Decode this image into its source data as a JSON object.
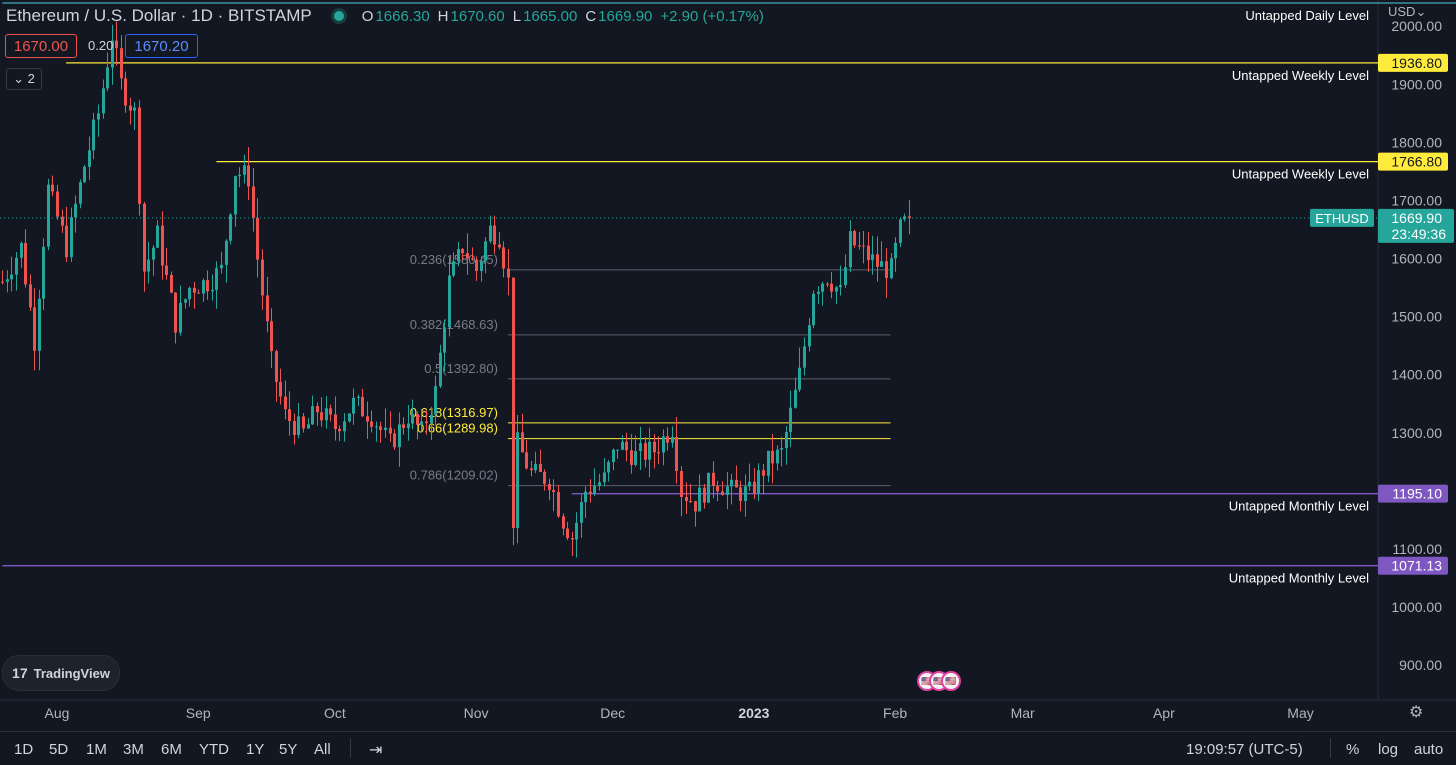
{
  "header": {
    "symbol": "Ethereum / U.S. Dollar · 1D · BITSTAMP",
    "ohlc": {
      "o_label": "O",
      "o": "1666.30",
      "h_label": "H",
      "h": "1670.60",
      "l_label": "L",
      "l": "1665.00",
      "c_label": "C",
      "c": "1669.90",
      "change": "+2.90 (+0.17%)"
    },
    "sell_price": "1670.00",
    "spread": "0.20",
    "buy_price": "1670.20",
    "indicators_collapse": "2"
  },
  "currency": "USD",
  "logo": "TradingView",
  "colors": {
    "bg": "#131722",
    "up": "#26a69a",
    "down": "#ef5350",
    "yellow": "#ffeb3b",
    "purple": "#7e57c2",
    "fib": "#787b86"
  },
  "chart_data": {
    "type": "candlestick",
    "symbol": "ETHUSD",
    "last_price": "1669.90",
    "countdown": "23:49:36",
    "y_ticks": [
      "2000.00",
      "1900.00",
      "1800.00",
      "1700.00",
      "1600.00",
      "1500.00",
      "1400.00",
      "1300.00",
      "1200.00",
      "1100.00",
      "1000.00",
      "900.00"
    ],
    "y_tick_values": [
      2000,
      1900,
      1800,
      1700,
      1600,
      1500,
      1400,
      1300,
      1200,
      1100,
      1000,
      900
    ],
    "x_ticks": [
      "Aug",
      "Sep",
      "Oct",
      "Nov",
      "Dec",
      "2023",
      "Feb",
      "Mar",
      "Apr",
      "May"
    ],
    "x_tick_dates": [
      "2022-08-01",
      "2022-09-01",
      "2022-10-01",
      "2022-11-01",
      "2022-12-01",
      "2023-01-01",
      "2023-02-01",
      "2023-03-01",
      "2023-04-01",
      "2023-05-01"
    ],
    "levels": [
      {
        "label": "Untapped Daily Level",
        "price": 2030,
        "color": "cyan",
        "start": "2022-07-20",
        "badge": ""
      },
      {
        "label": "Untapped Weekly Level",
        "price": 1936.8,
        "color": "yellow",
        "start": "2022-08-03",
        "badge": "1936.80"
      },
      {
        "label": "Untapped Weekly Level",
        "price": 1766.8,
        "color": "yellow",
        "start": "2022-09-05",
        "badge": "1766.80"
      },
      {
        "label": "Untapped Monthly Level",
        "price": 1195.1,
        "color": "purple",
        "start": "2022-11-22",
        "badge": "1195.10"
      },
      {
        "label": "Untapped Monthly Level",
        "price": 1071.13,
        "color": "purple",
        "start": "2022-07-20",
        "badge": "1071.13"
      }
    ],
    "fib": [
      {
        "label": "0.236(1580.45)",
        "price": 1580.45,
        "highlight": false
      },
      {
        "label": "0.382(1468.63)",
        "price": 1468.63,
        "highlight": false
      },
      {
        "label": "0.5(1392.80)",
        "price": 1392.8,
        "highlight": false
      },
      {
        "label": "0.618(1316.97)",
        "price": 1316.97,
        "highlight": true
      },
      {
        "label": "0.66(1289.98)",
        "price": 1289.98,
        "highlight": true
      },
      {
        "label": "0.786(1209.02)",
        "price": 1209.02,
        "highlight": false
      }
    ],
    "fib_range": {
      "start": "2022-11-08",
      "end": "2023-01-31"
    },
    "price_path": [
      [
        "2022-07-20",
        1560
      ],
      [
        "2022-07-24",
        1620
      ],
      [
        "2022-07-27",
        1460
      ],
      [
        "2022-07-30",
        1720
      ],
      [
        "2022-08-03",
        1620
      ],
      [
        "2022-08-07",
        1760
      ],
      [
        "2022-08-10",
        1850
      ],
      [
        "2022-08-13",
        1985
      ],
      [
        "2022-08-15",
        1900
      ],
      [
        "2022-08-18",
        1850
      ],
      [
        "2022-08-20",
        1580
      ],
      [
        "2022-08-23",
        1640
      ],
      [
        "2022-08-27",
        1490
      ],
      [
        "2022-08-30",
        1550
      ],
      [
        "2022-09-03",
        1560
      ],
      [
        "2022-09-06",
        1580
      ],
      [
        "2022-09-09",
        1750
      ],
      [
        "2022-09-12",
        1740
      ],
      [
        "2022-09-14",
        1600
      ],
      [
        "2022-09-17",
        1420
      ],
      [
        "2022-09-20",
        1330
      ],
      [
        "2022-09-24",
        1300
      ],
      [
        "2022-09-27",
        1340
      ],
      [
        "2022-10-01",
        1310
      ],
      [
        "2022-10-05",
        1350
      ],
      [
        "2022-10-09",
        1330
      ],
      [
        "2022-10-13",
        1280
      ],
      [
        "2022-10-17",
        1330
      ],
      [
        "2022-10-20",
        1300
      ],
      [
        "2022-10-23",
        1370
      ],
      [
        "2022-10-26",
        1560
      ],
      [
        "2022-10-29",
        1620
      ],
      [
        "2022-11-01",
        1580
      ],
      [
        "2022-11-04",
        1650
      ],
      [
        "2022-11-06",
        1640
      ],
      [
        "2022-11-08",
        1560
      ],
      [
        "2022-11-09",
        1150
      ],
      [
        "2022-11-10",
        1280
      ],
      [
        "2022-11-13",
        1230
      ],
      [
        "2022-11-17",
        1220
      ],
      [
        "2022-11-20",
        1150
      ],
      [
        "2022-11-22",
        1120
      ],
      [
        "2022-11-25",
        1200
      ],
      [
        "2022-11-29",
        1220
      ],
      [
        "2022-12-02",
        1280
      ],
      [
        "2022-12-06",
        1260
      ],
      [
        "2022-12-10",
        1270
      ],
      [
        "2022-12-14",
        1310
      ],
      [
        "2022-12-16",
        1200
      ],
      [
        "2022-12-19",
        1180
      ],
      [
        "2022-12-23",
        1220
      ],
      [
        "2022-12-27",
        1200
      ],
      [
        "2022-12-31",
        1196
      ],
      [
        "2023-01-04",
        1250
      ],
      [
        "2023-01-07",
        1265
      ],
      [
        "2023-01-11",
        1400
      ],
      [
        "2023-01-14",
        1550
      ],
      [
        "2023-01-17",
        1570
      ],
      [
        "2023-01-20",
        1540
      ],
      [
        "2023-01-22",
        1630
      ],
      [
        "2023-01-25",
        1610
      ],
      [
        "2023-01-28",
        1590
      ],
      [
        "2023-01-31",
        1580
      ],
      [
        "2023-02-02",
        1650
      ],
      [
        "2023-02-04",
        1669.9
      ]
    ]
  },
  "bottom": {
    "timeframes": [
      "1D",
      "5D",
      "1M",
      "3M",
      "6M",
      "YTD",
      "1Y",
      "5Y",
      "All"
    ],
    "clock": "19:09:57 (UTC-5)",
    "options": [
      "%",
      "log",
      "auto"
    ]
  }
}
